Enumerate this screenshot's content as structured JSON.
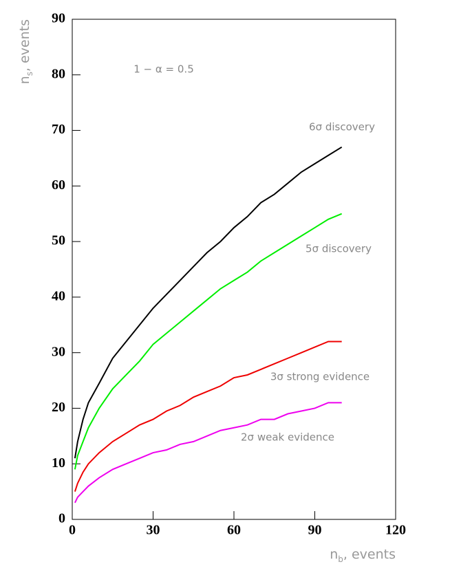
{
  "chart_data": {
    "type": "line",
    "annotation": "1 − α = 0.5",
    "xlabel": {
      "main": "n",
      "sub": "b",
      "rest": ", events"
    },
    "ylabel": {
      "main": "n",
      "sub": "s",
      "rest": ", events"
    },
    "xlim": [
      0,
      120
    ],
    "xticks": [
      0,
      30,
      60,
      90,
      120
    ],
    "ylim": [
      0,
      90
    ],
    "yticks": [
      0,
      10,
      20,
      30,
      40,
      50,
      60,
      70,
      80,
      90
    ],
    "x": [
      1,
      2,
      4,
      6,
      10,
      15,
      20,
      25,
      30,
      35,
      40,
      45,
      50,
      55,
      60,
      65,
      70,
      75,
      80,
      85,
      90,
      95,
      100
    ],
    "series": [
      {
        "name": "6σ discovery",
        "color": "#000000",
        "values": [
          11,
          14,
          18,
          21,
          24.5,
          29,
          32,
          35,
          38,
          40.5,
          43,
          45.5,
          48,
          50,
          52.5,
          54.5,
          57,
          58.5,
          60.5,
          62.5,
          64,
          65.5,
          67
        ]
      },
      {
        "name": "5σ discovery",
        "color": "#00ee00",
        "values": [
          9,
          11.5,
          14,
          16.5,
          20,
          23.5,
          26,
          28.5,
          31.5,
          33.5,
          35.5,
          37.5,
          39.5,
          41.5,
          43,
          44.5,
          46.5,
          48,
          49.5,
          51,
          52.5,
          54,
          55
        ]
      },
      {
        "name": "3σ strong evidence",
        "color": "#ee0000",
        "values": [
          5,
          6.5,
          8.5,
          10,
          12,
          14,
          15.5,
          17,
          18,
          19.5,
          20.5,
          22,
          23,
          24,
          25.5,
          26,
          27,
          28,
          29,
          30,
          31,
          32,
          32
        ]
      },
      {
        "name": "2σ weak evidence",
        "color": "#ee00ee",
        "values": [
          3,
          4,
          5,
          6,
          7.5,
          9,
          10,
          11,
          12,
          12.5,
          13.5,
          14,
          15,
          16,
          16.5,
          17,
          18,
          18,
          19,
          19.5,
          20,
          21,
          21
        ]
      }
    ]
  }
}
